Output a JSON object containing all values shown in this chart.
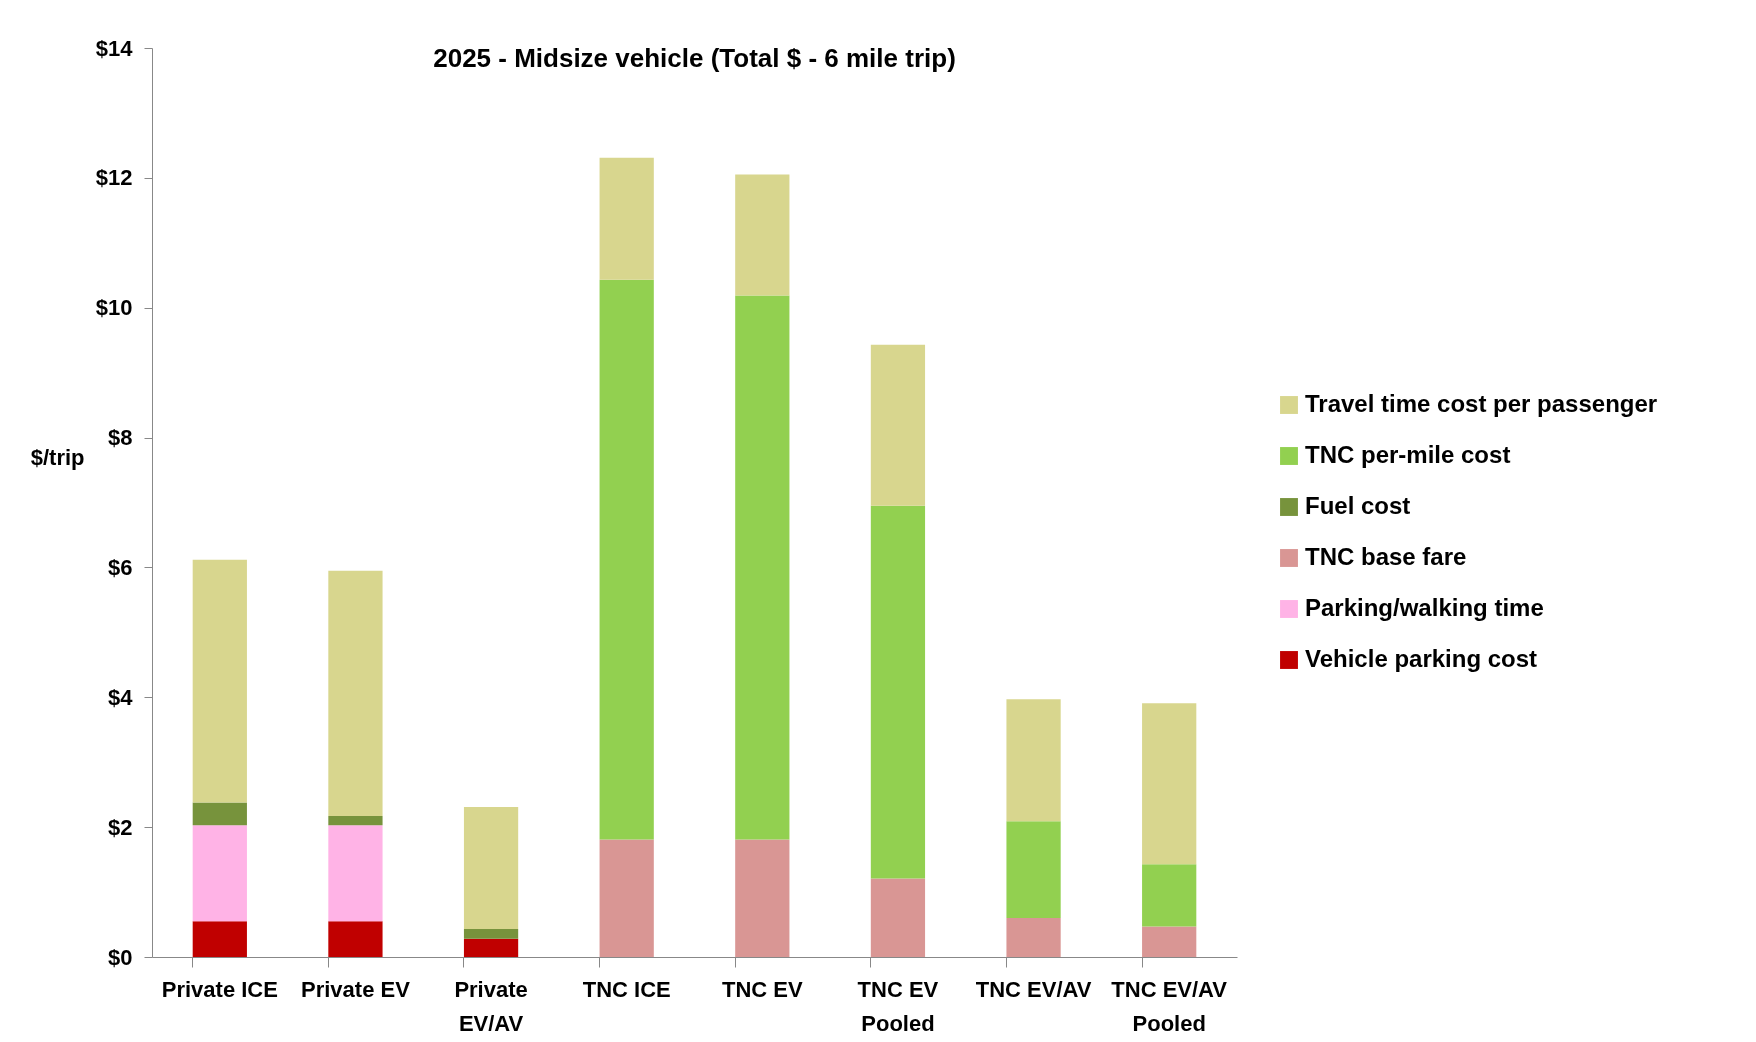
{
  "chart_data": {
    "type": "bar",
    "title": "2025 - Midsize vehicle (Total $ - 6 mile trip)",
    "ylabel": "$/trip",
    "stacked": true,
    "legend": "right",
    "grid": false,
    "categories": [
      "Private ICE",
      "Private EV",
      "Private EV/AV",
      "TNC ICE",
      "TNC EV",
      "TNC EV Pooled",
      "TNC EV/AV",
      "TNC EV/AV Pooled"
    ],
    "series": [
      {
        "name": "Vehicle parking cost",
        "color": "#c00000",
        "values": [
          0.55,
          0.55,
          0.28,
          null,
          null,
          null,
          null,
          null
        ]
      },
      {
        "name": "Parking/walking time",
        "color": "#ffb3e6",
        "values": [
          1.48,
          1.48,
          null,
          null,
          null,
          null,
          null,
          null
        ]
      },
      {
        "name": "TNC base fare",
        "color": "#d99694",
        "values": [
          null,
          null,
          null,
          1.81,
          1.81,
          1.21,
          0.6,
          0.47
        ]
      },
      {
        "name": "Fuel cost",
        "color": "#77933c",
        "values": [
          0.35,
          0.14,
          0.15,
          null,
          null,
          null,
          null,
          null
        ]
      },
      {
        "name": "TNC per-mile cost",
        "color": "#92d050",
        "values": [
          null,
          null,
          null,
          8.62,
          8.38,
          5.74,
          1.49,
          0.96
        ]
      },
      {
        "name": "Travel time cost per passenger",
        "color": "#d8d68e",
        "values": [
          3.74,
          3.78,
          1.88,
          1.88,
          1.86,
          2.48,
          1.88,
          2.48
        ]
      }
    ],
    "ylim": [
      0,
      14
    ],
    "yticks": [
      {
        "value": 0,
        "label": "$0"
      },
      {
        "value": 2,
        "label": "$2"
      },
      {
        "value": 4,
        "label": "$4"
      },
      {
        "value": 6,
        "label": "$6"
      },
      {
        "value": 8,
        "label": "$8"
      },
      {
        "value": 10,
        "label": "$10"
      },
      {
        "value": 12,
        "label": "$12"
      },
      {
        "value": 14,
        "label": "$14"
      }
    ]
  }
}
